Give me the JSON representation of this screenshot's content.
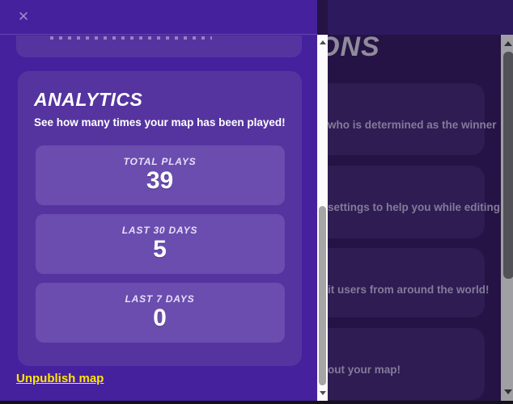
{
  "modal": {
    "header": {
      "close_icon": "✕"
    },
    "analytics": {
      "title": "ANALYTICS",
      "subtitle": "See how many times your map has been played!",
      "stats": [
        {
          "label": "TOTAL PLAYS",
          "value": "39"
        },
        {
          "label": "LAST 30 DAYS",
          "value": "5"
        },
        {
          "label": "LAST 7 DAYS",
          "value": "0"
        }
      ]
    },
    "unpublish_label": "Unpublish map"
  },
  "background_page": {
    "heading_fragment": "ONS",
    "cards": [
      {
        "text_fragment": "who is determined as the winner"
      },
      {
        "text_fragment": "settings to help you while editing"
      },
      {
        "text_fragment": "it users from around the world!"
      },
      {
        "text_fragment": "out your map!"
      }
    ]
  },
  "colors": {
    "modal_background": "#46219e",
    "card_background": "#55349f",
    "stat_box_background": "#6b4db0",
    "link_yellow": "#ffe600",
    "page_background": "#241344",
    "page_topbar": "#2d1a5e"
  }
}
